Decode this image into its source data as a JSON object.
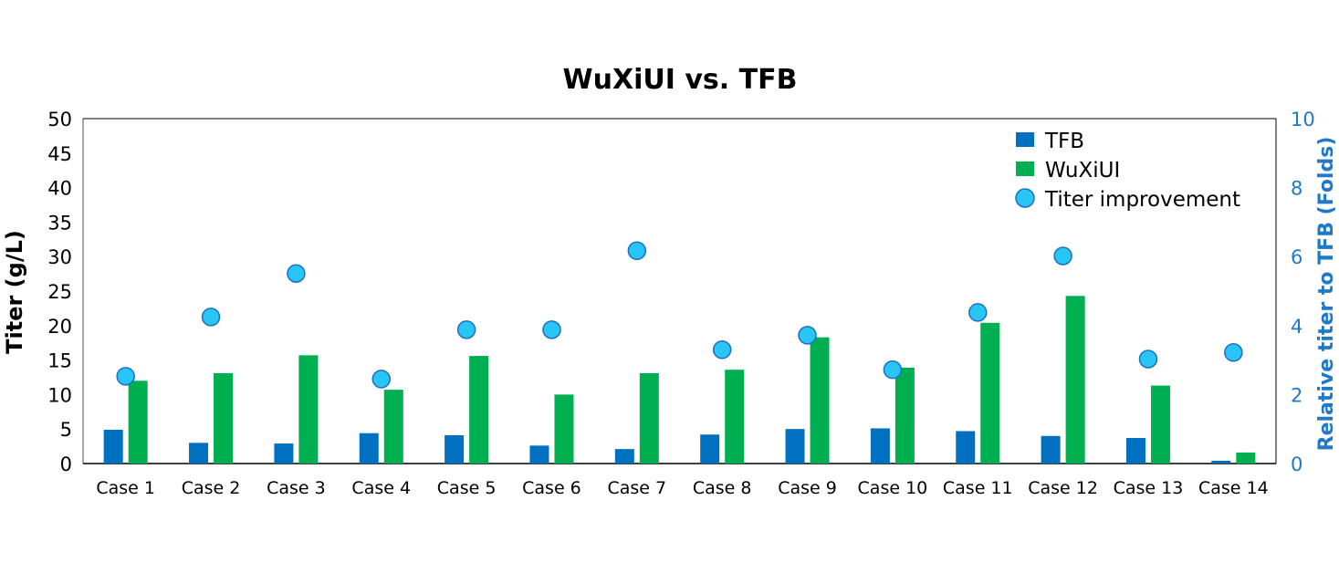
{
  "chart_data": {
    "type": "bar",
    "title": "WuXiUI vs. TFB",
    "ylabel": "Titer (g/L)",
    "y2label": "Relative titer to TFB (Folds)",
    "ylim": [
      0,
      50
    ],
    "y2lim": [
      0,
      10
    ],
    "yticks": [
      0,
      5,
      10,
      15,
      20,
      25,
      30,
      35,
      40,
      45,
      50
    ],
    "y2ticks": [
      0,
      2,
      4,
      6,
      8,
      10
    ],
    "legend_position": "top-right",
    "grid": false,
    "categories": [
      "Case 1",
      "Case 2",
      "Case 3",
      "Case 4",
      "Case 5",
      "Case 6",
      "Case 7",
      "Case 8",
      "Case 9",
      "Case 10",
      "Case 11",
      "Case 12",
      "Case 13",
      "Case 14"
    ],
    "series": [
      {
        "name": "TFB",
        "type": "bar",
        "axis": "left",
        "color": "#0070c0",
        "values": [
          4.9,
          3.0,
          2.9,
          4.4,
          4.1,
          2.6,
          2.1,
          4.2,
          5.0,
          5.1,
          4.7,
          4.0,
          3.7,
          0.4
        ]
      },
      {
        "name": "WuXiUI",
        "type": "bar",
        "axis": "left",
        "color": "#00b050",
        "values": [
          12.0,
          13.1,
          15.7,
          10.7,
          15.6,
          10.0,
          13.1,
          13.6,
          18.3,
          13.9,
          20.4,
          24.3,
          11.3,
          1.6
        ]
      },
      {
        "name": "Titer improvement",
        "type": "scatter",
        "axis": "right",
        "color": "#29c5f6",
        "values": [
          2.53,
          4.25,
          5.51,
          2.45,
          3.88,
          3.88,
          6.17,
          3.3,
          3.72,
          2.72,
          4.38,
          6.02,
          3.03,
          3.22
        ]
      }
    ]
  }
}
